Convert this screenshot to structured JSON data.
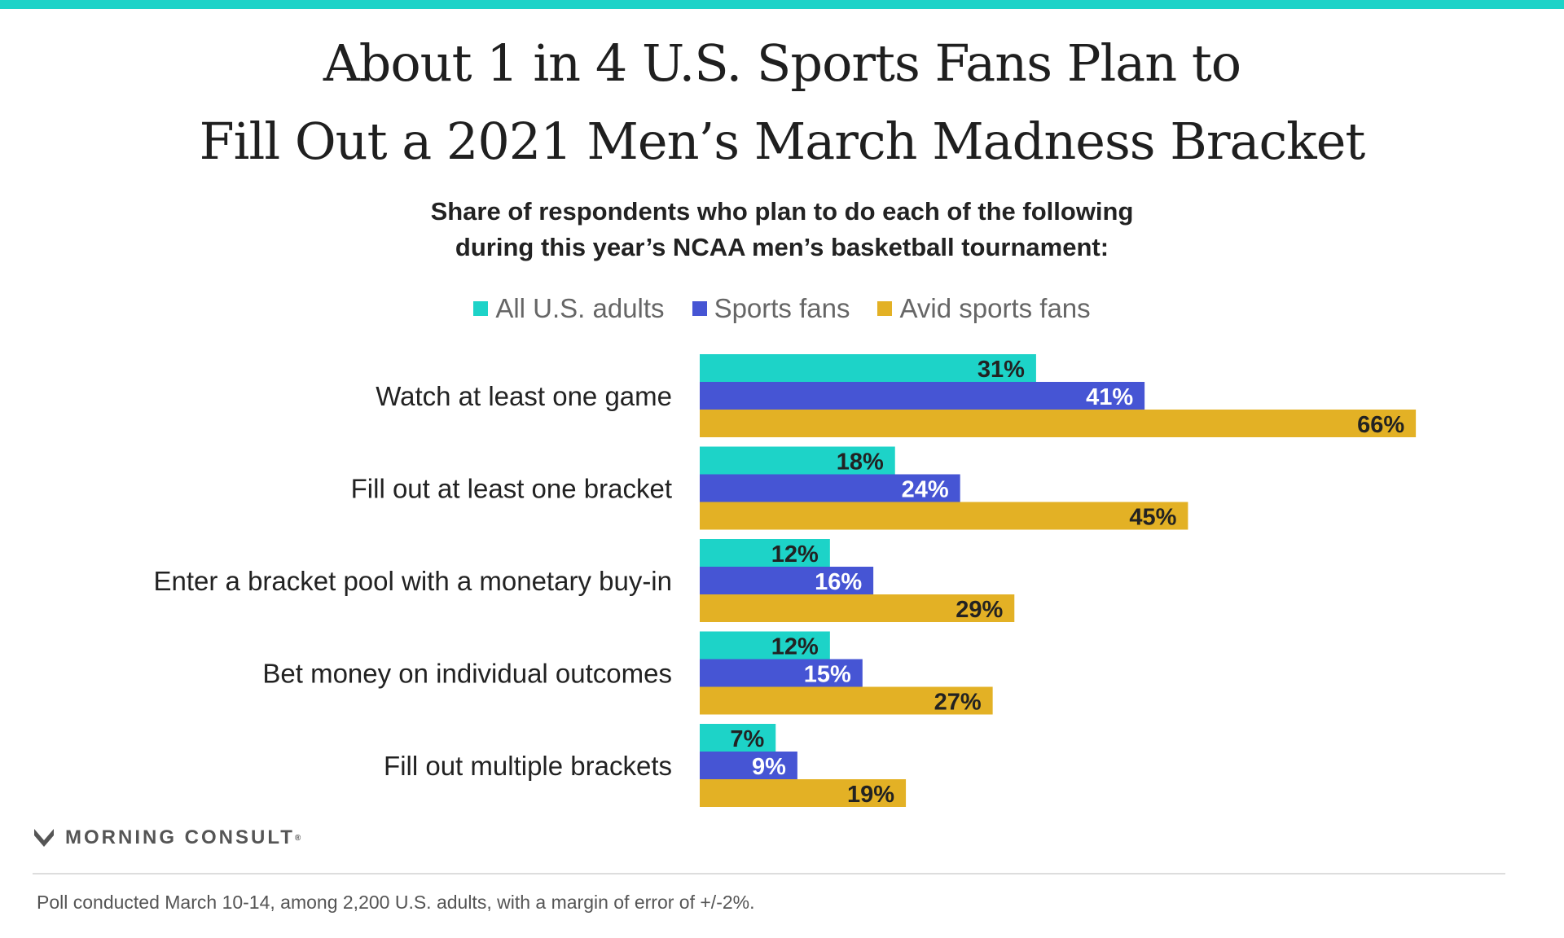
{
  "title_line1": "About 1 in 4 U.S. Sports Fans Plan to",
  "title_line2": "Fill Out a 2021 Men’s March Madness Bracket",
  "subtitle_line1": "Share of respondents who plan to do each of the following",
  "subtitle_line2": "during this year’s NCAA men’s basketball tournament:",
  "footnote": "Poll conducted March 10-14, among 2,200 U.S. adults, with a margin of error of +/-2%.",
  "brand": {
    "name": "MORNING CONSULT",
    "mark": "®"
  },
  "colors": {
    "accent": "#1dd3c8",
    "series1": "#1dd3c8",
    "series2": "#4655d4",
    "series3": "#e3b125"
  },
  "chart_data": {
    "type": "bar",
    "orientation": "horizontal",
    "categories": [
      "Watch at least one game",
      "Fill out at least one bracket",
      "Enter a bracket pool with a monetary buy-in",
      "Bet money on individual outcomes",
      "Fill out multiple brackets"
    ],
    "series": [
      {
        "name": "All U.S. adults",
        "color": "#1dd3c8",
        "label_color": "#222222",
        "values": [
          31,
          18,
          12,
          12,
          7
        ]
      },
      {
        "name": "Sports fans",
        "color": "#4655d4",
        "label_color": "#ffffff",
        "values": [
          41,
          24,
          16,
          15,
          9
        ]
      },
      {
        "name": "Avid sports fans",
        "color": "#e3b125",
        "label_color": "#222222",
        "values": [
          66,
          45,
          29,
          27,
          19
        ]
      }
    ],
    "value_suffix": "%",
    "xlim": [
      0,
      100
    ],
    "legend": "top-center",
    "grid": false
  }
}
